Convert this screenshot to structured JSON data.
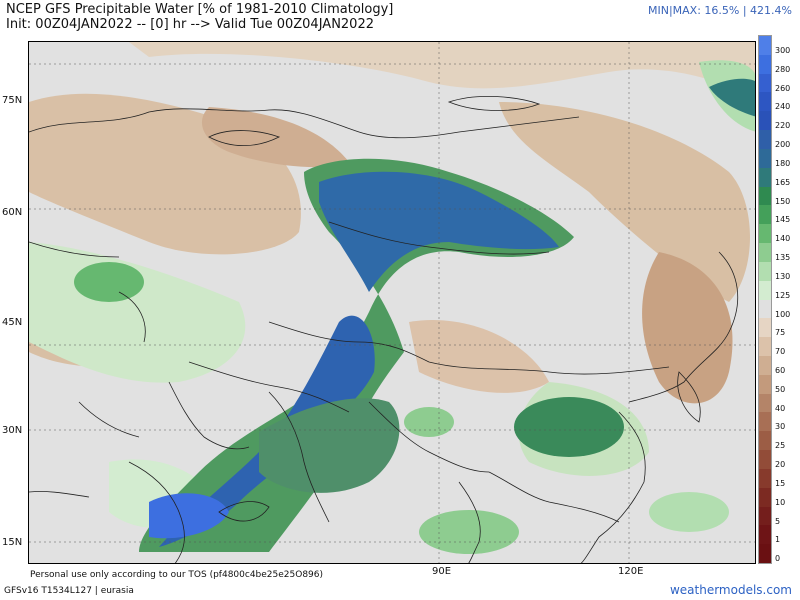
{
  "header": {
    "title": "NCEP GFS Precipitable Water [% of 1981-2010 Climatology]",
    "subtitle": "Init: 00Z04JAN2022 -- [0] hr --> Valid Tue 00Z04JAN2022",
    "minmax": "MIN|MAX: 16.5% | 421.4%"
  },
  "map": {
    "lat_labels": [
      "75N",
      "60N",
      "45N",
      "30N",
      "15N"
    ],
    "lon_labels": [
      "90E",
      "120E"
    ]
  },
  "colorbar": {
    "labels": [
      "300",
      "280",
      "260",
      "240",
      "220",
      "200",
      "180",
      "165",
      "150",
      "145",
      "140",
      "135",
      "130",
      "125",
      "100",
      "75",
      "70",
      "60",
      "50",
      "40",
      "30",
      "25",
      "20",
      "15",
      "10",
      "5",
      "1",
      "0"
    ],
    "colors": [
      "#4f7fe8",
      "#3d6fe0",
      "#3560d0",
      "#2d56c2",
      "#2a52b8",
      "#2f5fa8",
      "#2e6a98",
      "#2f7a7a",
      "#2f8a50",
      "#44a05a",
      "#66b870",
      "#8ecc90",
      "#b2deb0",
      "#d3ecd0",
      "#e0e0e0",
      "#e6d5c4",
      "#dcc2aa",
      "#cfae92",
      "#c39a7c",
      "#b48468",
      "#a86f55",
      "#9c5d45",
      "#924c38",
      "#873a2c",
      "#7c2a22",
      "#741e1c",
      "#6e1416",
      "#6a1012"
    ]
  },
  "footer": {
    "tos": "Personal use only according to our TOS (pf4800c4be25e25O896)",
    "model": "GFSv16 T1534L127 | eurasia",
    "site": "weathermodels.com"
  }
}
